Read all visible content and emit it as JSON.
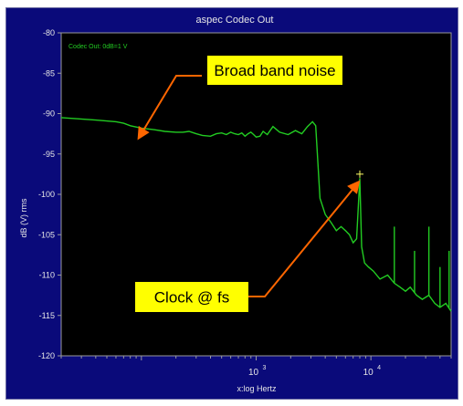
{
  "chart_data": {
    "type": "line",
    "title": "aspec Codec Out",
    "inner_label": "Codec Out: 0dB=1 V",
    "xlabel": "x:log Hertz",
    "ylabel": "dB (V) rms",
    "x_scale": "log",
    "xlim": [
      20,
      50000
    ],
    "ylim": [
      -120,
      -80
    ],
    "y_ticks": [
      -80,
      -85,
      -90,
      -95,
      -100,
      -105,
      -110,
      -115,
      -120
    ],
    "x_ticks": [
      {
        "base": "10",
        "exp": "3",
        "value": 1000
      },
      {
        "base": "10",
        "exp": "4",
        "value": 10000
      }
    ],
    "series": [
      {
        "color": "#22cc22",
        "x": [
          20,
          40,
          60,
          70,
          80,
          100,
          130,
          160,
          200,
          230,
          260,
          300,
          340,
          400,
          450,
          500,
          550,
          600,
          650,
          700,
          750,
          800,
          850,
          900,
          950,
          1000,
          1080,
          1150,
          1250,
          1400,
          1600,
          1900,
          2200,
          2500,
          2800,
          3100,
          3300,
          3600,
          4000,
          4500,
          5000,
          5500,
          6000,
          6500,
          7000,
          7500,
          7800,
          8000,
          8300,
          8800,
          9500,
          10500,
          12000,
          14000,
          16000,
          18000,
          20000,
          22000,
          25000,
          28000,
          32000,
          36000,
          40000,
          45000,
          50000
        ],
        "y": [
          -90.5,
          -90.8,
          -91.0,
          -91.2,
          -91.5,
          -91.8,
          -92.0,
          -92.2,
          -92.3,
          -92.3,
          -92.2,
          -92.5,
          -92.7,
          -92.8,
          -92.5,
          -92.4,
          -92.6,
          -92.3,
          -92.5,
          -92.6,
          -92.4,
          -92.8,
          -92.5,
          -92.3,
          -92.6,
          -92.9,
          -92.8,
          -92.2,
          -92.6,
          -91.6,
          -92.3,
          -92.6,
          -92.1,
          -92.5,
          -91.6,
          -91.0,
          -91.5,
          -100.5,
          -102.5,
          -103.5,
          -104.5,
          -104.0,
          -104.5,
          -105.0,
          -106.0,
          -105.5,
          -101.0,
          -98.0,
          -106.5,
          -108.5,
          -109.0,
          -109.5,
          -110.5,
          -110.0,
          -111.0,
          -111.5,
          -112.0,
          -111.5,
          -112.5,
          -113.0,
          -112.5,
          -113.5,
          -114.0,
          -113.5,
          -114.5
        ]
      }
    ],
    "spurs": [
      {
        "x": 8000,
        "y": -98
      },
      {
        "x": 16000,
        "y": -104
      },
      {
        "x": 24000,
        "y": -107
      },
      {
        "x": 32000,
        "y": -104
      },
      {
        "x": 40000,
        "y": -109
      },
      {
        "x": 48000,
        "y": -107
      }
    ],
    "cursor": {
      "x": 8000,
      "y": -97.5,
      "color": "#ffff66"
    },
    "annotations": [
      {
        "text": "Broad band noise",
        "target_x": 95,
        "target_y": -93
      },
      {
        "text": "Clock @ fs",
        "target_x": 7800,
        "target_y": -98.5
      }
    ],
    "grid": false,
    "colors": {
      "background": "#0a0a7a",
      "plot": "#000000",
      "trace": "#22cc22",
      "arrow": "#ff6600",
      "callout": "#ffff00"
    }
  }
}
